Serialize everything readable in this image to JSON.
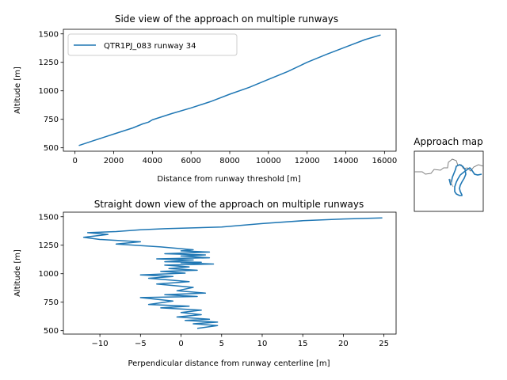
{
  "charts": {
    "side": {
      "title": "Side view of the approach on multiple runways",
      "xlabel": "Distance from runway threshold [m]",
      "ylabel": "Altitude [m]",
      "xticks": [
        "0",
        "2000",
        "4000",
        "6000",
        "8000",
        "10000",
        "12000",
        "14000",
        "16000"
      ],
      "yticks": [
        "500",
        "750",
        "1000",
        "1250",
        "1500"
      ],
      "legend_label": "QTR1PJ_083 runway 34",
      "color": "#1f77b4"
    },
    "top": {
      "title": "Straight down view of the approach on multiple runways",
      "xlabel": "Perpendicular distance from runway centerline [m]",
      "ylabel": "Altitude [m]",
      "xticks": [
        "−10",
        "−5",
        "0",
        "5",
        "10",
        "15",
        "20",
        "25"
      ],
      "yticks": [
        "500",
        "750",
        "1000",
        "1250",
        "1500"
      ],
      "color": "#1f77b4"
    },
    "map": {
      "title": "Approach map",
      "coast_color": "#808080",
      "path_color": "#1f77b4"
    }
  },
  "chart_data": [
    {
      "type": "line",
      "title": "Side view of the approach on multiple runways",
      "xlabel": "Distance from runway threshold [m]",
      "ylabel": "Altitude [m]",
      "xlim": [
        -600,
        16600
      ],
      "ylim": [
        470,
        1540
      ],
      "grid": false,
      "legend": "top-left",
      "series": [
        {
          "name": "QTR1PJ_083 runway 34",
          "x": [
            200,
            1000,
            2000,
            3000,
            3500,
            3800,
            4000,
            5000,
            6000,
            7000,
            8000,
            9000,
            10000,
            11000,
            12000,
            13000,
            14000,
            15000,
            15800
          ],
          "y": [
            520,
            565,
            620,
            675,
            710,
            725,
            745,
            800,
            850,
            905,
            970,
            1030,
            1100,
            1170,
            1250,
            1320,
            1385,
            1450,
            1490
          ]
        }
      ]
    },
    {
      "type": "line",
      "title": "Straight down view of the approach on multiple runways",
      "xlabel": "Perpendicular distance from runway centerline [m]",
      "ylabel": "Altitude [m]",
      "xlim": [
        -14.5,
        26.5
      ],
      "ylim": [
        470,
        1540
      ],
      "grid": false,
      "series": [
        {
          "name": "",
          "x": [
            2.0,
            4.5,
            1.5,
            4.5,
            0.5,
            3.5,
            -0.5,
            2.5,
            0.0,
            2.5,
            -2.5,
            1.0,
            -4.0,
            -1.0,
            -5.0,
            2.0,
            -2.0,
            3.0,
            -0.5,
            1.5,
            -3.0,
            1.0,
            -4.0,
            -1.0,
            -5.0,
            0.5,
            -2.5,
            2.0,
            -1.5,
            1.0,
            -2.0,
            4.0,
            0.0,
            2.5,
            -2.0,
            1.5,
            -3.0,
            3.5,
            0.0,
            3.0,
            -2.0,
            3.5,
            0.0,
            1.5,
            -2.5,
            -8.0,
            -5.0,
            -10.0,
            -12.0,
            -9.0,
            -11.5,
            -8.0,
            -5.0,
            -2.0,
            5.0,
            10.0,
            15.0,
            20.0,
            24.8
          ],
          "y": [
            520,
            545,
            560,
            575,
            590,
            600,
            620,
            640,
            660,
            680,
            700,
            715,
            730,
            760,
            790,
            800,
            815,
            830,
            850,
            880,
            910,
            930,
            960,
            975,
            990,
            1005,
            1020,
            1030,
            1045,
            1060,
            1075,
            1085,
            1095,
            1100,
            1105,
            1120,
            1130,
            1140,
            1155,
            1165,
            1175,
            1190,
            1200,
            1210,
            1235,
            1260,
            1280,
            1300,
            1320,
            1345,
            1360,
            1370,
            1385,
            1395,
            1410,
            1440,
            1465,
            1480,
            1490
          ]
        }
      ]
    }
  ]
}
